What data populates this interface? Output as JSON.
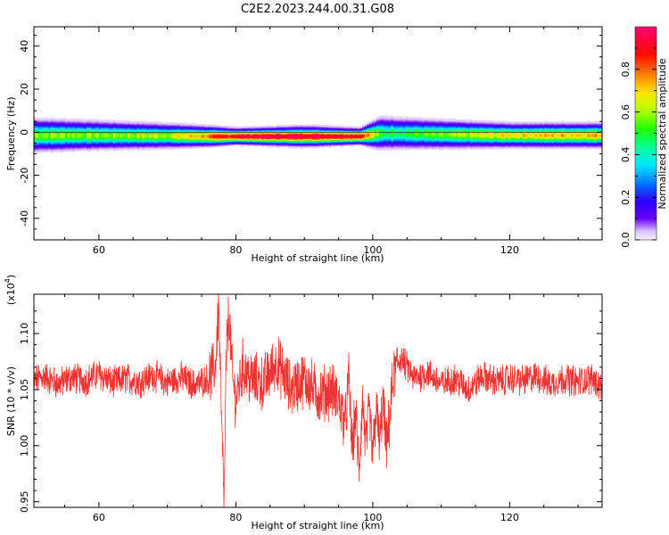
{
  "chart_data": [
    {
      "type": "heatmap",
      "title": "C2E2.2023.244.00.31.G08",
      "xlabel": "Height of straight line (km)",
      "ylabel": "Frequency (Hz)",
      "xlim": [
        50.5,
        133.5
      ],
      "ylim": [
        -50,
        49
      ],
      "xticks": [
        60,
        80,
        100,
        120
      ],
      "yticks": [
        40,
        20,
        0,
        -20,
        -40
      ],
      "grid": false,
      "colorbar": {
        "label": "Normalized spectral amplitude",
        "range": [
          0,
          1
        ],
        "ticks": [
          0.0,
          0.2,
          0.4,
          0.6,
          0.8
        ]
      },
      "band": [
        {
          "x": 50.5,
          "center": -1.5,
          "halfwidth": 4.0,
          "peak": 0.6
        },
        {
          "x": 60,
          "center": -1.5,
          "halfwidth": 3.5,
          "peak": 0.58
        },
        {
          "x": 70,
          "center": -1.8,
          "halfwidth": 3.0,
          "peak": 0.62
        },
        {
          "x": 76,
          "center": -2.0,
          "halfwidth": 2.5,
          "peak": 0.8
        },
        {
          "x": 80,
          "center": -2.0,
          "halfwidth": 2.0,
          "peak": 0.95
        },
        {
          "x": 90,
          "center": -2.0,
          "halfwidth": 2.5,
          "peak": 0.98
        },
        {
          "x": 98,
          "center": -2.0,
          "halfwidth": 2.0,
          "peak": 0.95
        },
        {
          "x": 101,
          "center": -0.5,
          "halfwidth": 4.0,
          "peak": 0.5
        },
        {
          "x": 110,
          "center": -1.0,
          "halfwidth": 3.5,
          "peak": 0.55
        },
        {
          "x": 120,
          "center": -1.5,
          "halfwidth": 3.0,
          "peak": 0.7
        },
        {
          "x": 133.5,
          "center": -1.5,
          "halfwidth": 3.0,
          "peak": 0.75
        }
      ]
    },
    {
      "type": "line",
      "xlabel": "Height of straight line (km)",
      "ylabel": "SNR (10 * v/v)",
      "yscale_label": "(x10^4)",
      "xlim": [
        50.5,
        133.5
      ],
      "ylim": [
        0.945,
        1.135
      ],
      "xticks": [
        60,
        80,
        100,
        120
      ],
      "yticks": [
        0.95,
        1.0,
        1.05,
        1.1
      ],
      "ytick_labels": [
        "0.95",
        "1.00",
        "1.05",
        "1.10"
      ],
      "grid": false,
      "series": [
        {
          "color": "#ee3333",
          "x": [
            50.5,
            52,
            54,
            56,
            58,
            60,
            62,
            64,
            66,
            68,
            70,
            72,
            74,
            76,
            77,
            77.5,
            78,
            78.3,
            78.6,
            79,
            79.5,
            80,
            81,
            82,
            84,
            86,
            88,
            90,
            92,
            94,
            95,
            96,
            96.5,
            97,
            97.5,
            98,
            98.5,
            99,
            99.5,
            100,
            100.5,
            101,
            101.5,
            102,
            103,
            104,
            106,
            108,
            110,
            112,
            114,
            116,
            118,
            120,
            122,
            124,
            126,
            128,
            130,
            132,
            133.5
          ],
          "values": [
            1.058,
            1.062,
            1.055,
            1.061,
            1.058,
            1.064,
            1.056,
            1.06,
            1.057,
            1.063,
            1.056,
            1.061,
            1.054,
            1.06,
            1.07,
            1.125,
            1.0,
            0.95,
            1.08,
            1.12,
            1.06,
            1.04,
            1.07,
            1.06,
            1.055,
            1.075,
            1.05,
            1.06,
            1.045,
            1.05,
            1.04,
            1.02,
            1.06,
            0.995,
            1.03,
            0.975,
            1.04,
            1.0,
            1.03,
            0.99,
            1.035,
            1.0,
            1.04,
            0.995,
            1.06,
            1.08,
            1.06,
            1.065,
            1.055,
            1.06,
            1.05,
            1.062,
            1.057,
            1.06,
            1.058,
            1.062,
            1.055,
            1.06,
            1.057,
            1.06,
            1.052
          ]
        }
      ]
    }
  ]
}
